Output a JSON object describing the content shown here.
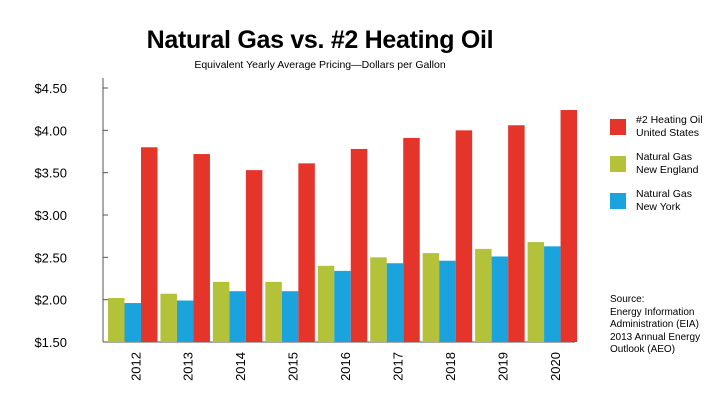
{
  "chart_data": {
    "type": "bar",
    "title": "Natural Gas vs. #2 Heating Oil",
    "subtitle": "Equivalent Yearly Average Pricing—Dollars per Gallon",
    "xlabel": "",
    "ylabel": "",
    "categories": [
      "2012",
      "2013",
      "2014",
      "2015",
      "2016",
      "2017",
      "2018",
      "2019",
      "2020"
    ],
    "ylim": [
      1.5,
      4.5
    ],
    "yticks": [
      "$1.50",
      "$2.00",
      "$2.50",
      "$3.00",
      "$3.50",
      "$4.00",
      "$4.50"
    ],
    "ytick_values": [
      1.5,
      2.0,
      2.5,
      3.0,
      3.5,
      4.0,
      4.5
    ],
    "grid": false,
    "legend_position": "right",
    "series": [
      {
        "name": "Natural Gas New England",
        "name_lines": [
          "Natural Gas",
          "New England"
        ],
        "color": "#b4c23a",
        "values": [
          2.02,
          2.07,
          2.21,
          2.21,
          2.4,
          2.5,
          2.55,
          2.6,
          2.68
        ]
      },
      {
        "name": "Natural Gas New York",
        "name_lines": [
          "Natural Gas",
          "New York"
        ],
        "color": "#1aa3dd",
        "values": [
          1.96,
          1.99,
          2.1,
          2.1,
          2.34,
          2.43,
          2.46,
          2.51,
          2.63
        ]
      },
      {
        "name": "#2 Heating Oil United States",
        "name_lines": [
          "#2 Heating Oil",
          "United States"
        ],
        "color": "#e5352b",
        "values": [
          3.8,
          3.72,
          3.53,
          3.61,
          3.78,
          3.91,
          4.0,
          4.06,
          4.24
        ]
      }
    ],
    "legend_order": [
      2,
      0,
      1
    ],
    "source_lines": [
      "Source:",
      "Energy Information",
      "Administration (EIA)",
      "2013 Annual Energy",
      "Outlook (AEO)"
    ]
  }
}
